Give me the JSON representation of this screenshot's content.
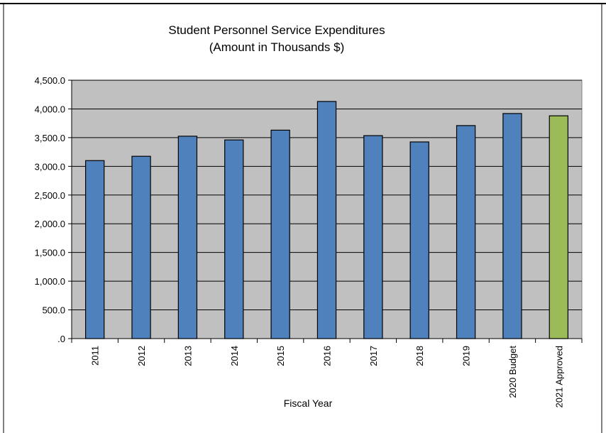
{
  "chart_data": {
    "type": "bar",
    "title": "Student Personnel Service Expenditures",
    "subtitle": "(Amount in Thousands $)",
    "xlabel": "Fiscal Year",
    "ylabel": "",
    "categories": [
      "2011",
      "2012",
      "2013",
      "2014",
      "2015",
      "2016",
      "2017",
      "2018",
      "2019",
      "2020 Budget",
      "2021 Approved"
    ],
    "values": [
      3100,
      3175,
      3525,
      3460,
      3630,
      4130,
      3535,
      3425,
      3710,
      3920,
      3880
    ],
    "ylim": [
      0,
      4500
    ],
    "yticks": [
      0,
      500,
      1000,
      1500,
      2000,
      2500,
      3000,
      3500,
      4000,
      4500
    ],
    "ytick_labels": [
      ".0",
      "500.0",
      "1,000.0",
      "1,500.0",
      "2,000.0",
      "2,500.0",
      "3,000.0",
      "3,500.0",
      "4,000.0",
      "4,500.0"
    ],
    "grid": true,
    "legend": "none",
    "colors": {
      "bar": "#4F81BD",
      "bar_highlight": "#9BBB59",
      "plot_background": "#C0C0C0",
      "axis": "#000000"
    },
    "highlight_index": 10
  }
}
